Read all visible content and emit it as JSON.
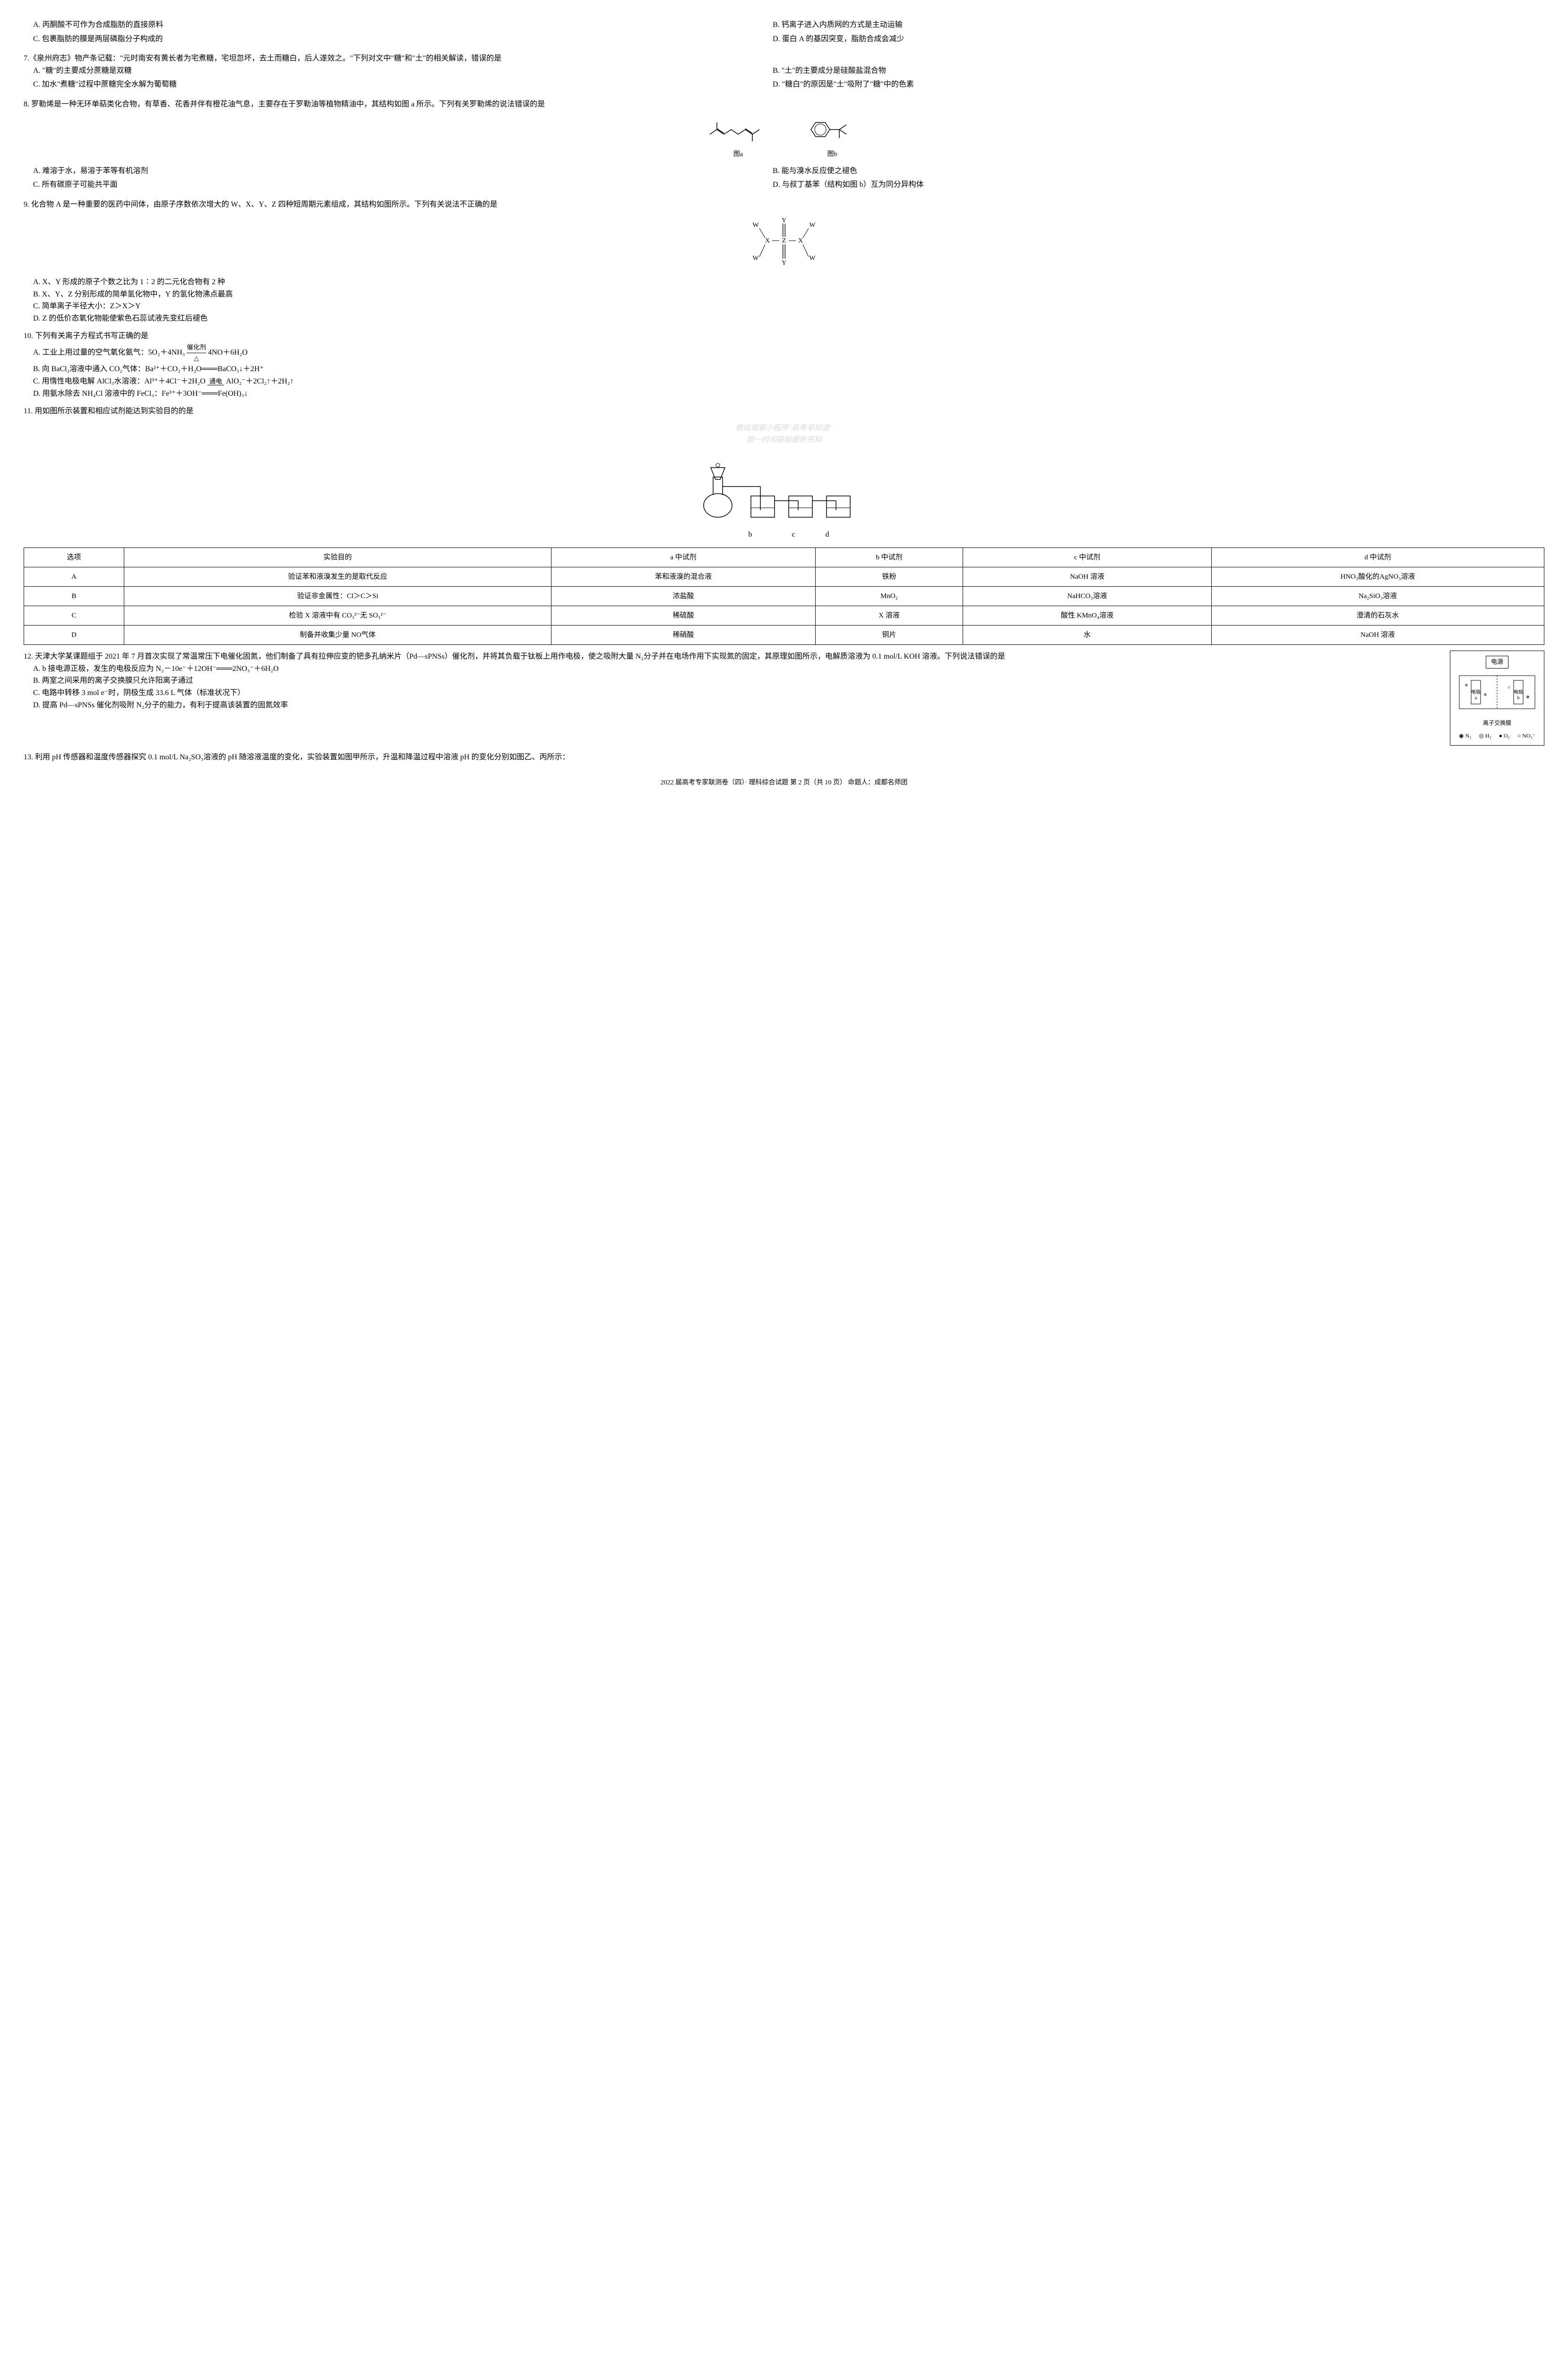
{
  "q6_cont": {
    "optA": "A. 丙酮酸不可作为合成脂肪的直接原料",
    "optB": "B. 钙离子进入内质网的方式是主动运输",
    "optC": "C. 包裹脂肪的膜是两层磷脂分子构成的",
    "optD": "D. 蛋白 A 的基因突变，脂肪合成会减少"
  },
  "q7": {
    "stem": "7.《泉州府志》物产条记载：\"元时南安有黄长者为宅煮糖，宅坦忽坏，去土而糖白，后人遂效之。\"下列对文中\"糖\"和\"土\"的相关解读，错误的是",
    "optA": "A. \"糖\"的主要成分蔗糖是双糖",
    "optB": "B. \"土\"的主要成分是硅酸盐混合物",
    "optC": "C. 加水\"煮糖\"过程中蔗糖完全水解为葡萄糖",
    "optD": "D. \"糖白\"的原因是\"土\"吸附了\"糖\"中的色素"
  },
  "q8": {
    "stem": "8. 罗勒烯是一种无环单萜类化合物，有草香、花香并伴有橙花油气息，主要存在于罗勒油等植物精油中，其结构如图 a 所示。下列有关罗勒烯的说法错误的是",
    "labelA": "图a",
    "labelB": "图b",
    "optA": "A. 难溶于水，易溶于苯等有机溶剂",
    "optB": "B. 能与溴水反应使之褪色",
    "optC": "C. 所有碳原子可能共平面",
    "optD": "D. 与叔丁基苯（结构如图 b）互为同分异构体"
  },
  "q9": {
    "stem": "9. 化合物 A 是一种重要的医药中间体，由原子序数依次增大的 W、X、Y、Z 四种短周期元素组成，其结构如图所示。下列有关说法不正确的是",
    "optA": "A. X、Y 形成的原子个数之比为 1∶2 的二元化合物有 2 种",
    "optB": "B. X、Y、Z 分别形成的简单氢化物中，Y 的氢化物沸点最高",
    "optC": "C. 简单离子半径大小：Z＞X＞Y",
    "optD": "D. Z 的低价态氧化物能使紫色石蕊试液先变红后褪色"
  },
  "q10": {
    "stem": "10. 下列有关离子方程式书写正确的是",
    "optA_prefix": "A. 工业上用过量的空气氧化氨气：5O₂＋4NH₃",
    "optA_cond": "催化剂",
    "optA_suffix": "4NO＋6H₂O",
    "optB": "B. 向 BaCl₂溶液中通入 CO₂气体：Ba²⁺＋CO₂＋H₂O═══BaCO₃↓＋2H⁺",
    "optC_prefix": "C. 用惰性电极电解 AlCl₃水溶液：Al³⁺＋4Cl⁻＋2H₂O",
    "optC_cond": "通电",
    "optC_suffix": "AlO₂⁻＋2Cl₂↑＋2H₂↑",
    "optD": "D. 用氨水除去 NH₄Cl 溶液中的 FeCl₃：Fe³⁺＋3OH⁻═══Fe(OH)₃↓"
  },
  "q11": {
    "stem": "11. 用如图所示装置和相应试剂能达到实验目的的是",
    "watermark1": "微信搜索小程序\"高考早知道\"",
    "watermark2": "第一时间获取最新资料",
    "labels": [
      "b",
      "c",
      "d"
    ],
    "table": {
      "headers": [
        "选项",
        "实验目的",
        "a 中试剂",
        "b 中试剂",
        "c 中试剂",
        "d 中试剂"
      ],
      "rows": [
        [
          "A",
          "验证苯和液溴发生的是取代反应",
          "苯和液溴的混合液",
          "铁粉",
          "NaOH 溶液",
          "HNO₃酸化的AgNO₃溶液"
        ],
        [
          "B",
          "验证非金属性：Cl＞C＞Si",
          "浓盐酸",
          "MnO₂",
          "NaHCO₃溶液",
          "Na₂SiO₃溶液"
        ],
        [
          "C",
          "检验 X 溶液中有 CO₃²⁻无 SO₃²⁻",
          "稀硫酸",
          "X 溶液",
          "酸性 KMnO₄溶液",
          "澄清的石灰水"
        ],
        [
          "D",
          "制备并收集少量 NO气体",
          "稀硝酸",
          "铜片",
          "水",
          "NaOH 溶液"
        ]
      ]
    }
  },
  "q12": {
    "stem": "12. 天津大学某课题组于 2021 年 7 月首次实现了常温常压下电催化固氮，他们制备了具有拉伸应变的钯多孔纳米片（Pd—sPNSs）催化剂，并将其负载于钛板上用作电极，使之吸附大量 N₂分子并在电场作用下实现氮的固定，其原理如图所示，电解质溶液为 0.1 mol/L KOH 溶液。下列说法错误的是",
    "diagram": {
      "title": "电源",
      "electrodeA": "电极a",
      "electrodeB": "电极b",
      "membrane": "离子交换膜",
      "legend": [
        "N₂",
        "H₂",
        "O₂",
        "NO₃⁻"
      ]
    },
    "optA": "A. b 接电源正极，发生的电极反应为 N₂－10e⁻＋12OH⁻═══2NO₃⁻＋6H₂O",
    "optB": "B. 两室之间采用的离子交换膜只允许阳离子通过",
    "optC": "C. 电路中转移 3 mol e⁻时，阴极生成 33.6 L 气体（标准状况下）",
    "optD": "D. 提高 Pd—sPNSs 催化剂吸附 N₂分子的能力，有利于提高该装置的固氮效率"
  },
  "q13": {
    "stem": "13. 利用 pH 传感器和温度传感器探究 0.1 mol/L Na₂SO₃溶液的 pH 随溶液温度的变化，实验装置如图甲所示，升温和降温过程中溶液 pH 的变化分别如图乙、丙所示："
  },
  "footer": {
    "text": "2022 届高考专家联测卷（四）· 理科综合试题  第 2 页（共 10 页）  命题人：成都名师团"
  }
}
